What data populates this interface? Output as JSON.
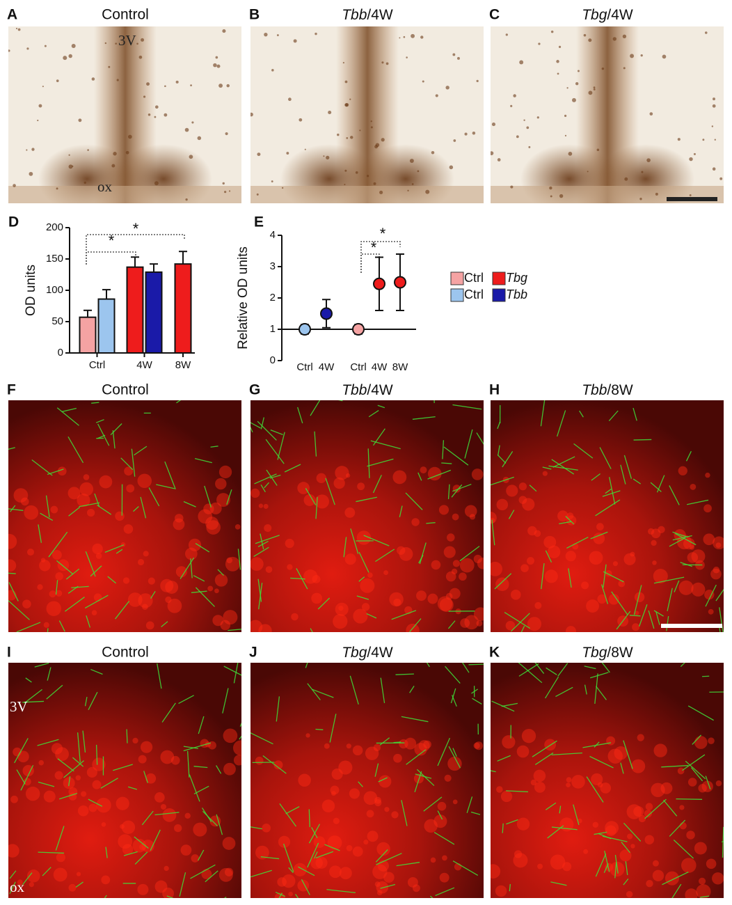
{
  "panels": [
    {
      "letter": "A",
      "title": "Control",
      "labels": [
        "3V",
        "ox"
      ]
    },
    {
      "letter": "B",
      "gene": "Tbb",
      "suffix": "/4W"
    },
    {
      "letter": "C",
      "gene": "Tbg",
      "suffix": "/4W"
    },
    {
      "letter": "F",
      "title": "Control"
    },
    {
      "letter": "G",
      "gene": "Tbb",
      "suffix": "/4W"
    },
    {
      "letter": "H",
      "gene": "Tbb",
      "suffix": "/8W"
    },
    {
      "letter": "I",
      "title": "Control",
      "labels": [
        "3V",
        "ox"
      ]
    },
    {
      "letter": "J",
      "gene": "Tbg",
      "suffix": "/4W"
    },
    {
      "letter": "K",
      "gene": "Tbg",
      "suffix": "/8W"
    }
  ],
  "legend": [
    {
      "name": "Ctrl",
      "color": "#f5a3a3"
    },
    {
      "name": "Tbg",
      "color": "#ee1c1c"
    },
    {
      "name": "Ctrl",
      "color": "#9cc5ee"
    },
    {
      "name": "Tbb",
      "color": "#1a1aa8"
    }
  ],
  "chart_data": [
    {
      "type": "bar",
      "letter": "D",
      "ylabel": "OD units",
      "categories": [
        "Ctrl",
        null,
        "4W",
        null,
        "8W"
      ],
      "values": [
        57,
        86,
        137,
        129,
        142
      ],
      "errors": [
        11,
        15,
        16,
        13,
        20
      ],
      "colors": [
        "#f5a3a3",
        "#9cc5ee",
        "#ee1c1c",
        "#1a1aa8",
        "#ee1c1c"
      ],
      "ylim": [
        0,
        200
      ],
      "yticks": [
        0,
        50,
        100,
        150,
        200
      ],
      "annotations": [
        "*",
        "*"
      ]
    },
    {
      "type": "errorpoint",
      "letter": "E",
      "ylabel": "Relative OD units",
      "categories": [
        "Ctrl",
        "4W",
        "Ctrl",
        "4W",
        "8W"
      ],
      "values": [
        1,
        1.5,
        1,
        2.45,
        2.5
      ],
      "errors": [
        0.15,
        0.45,
        0.15,
        0.85,
        0.9
      ],
      "colors": [
        "#9cc5ee",
        "#1a1aa8",
        "#f5a3a3",
        "#ee1c1c",
        "#ee1c1c"
      ],
      "ylim": [
        0,
        4
      ],
      "yticks": [
        0,
        1,
        2,
        3,
        4
      ],
      "reference_line": 1,
      "annotations": [
        "*",
        "*"
      ]
    }
  ]
}
